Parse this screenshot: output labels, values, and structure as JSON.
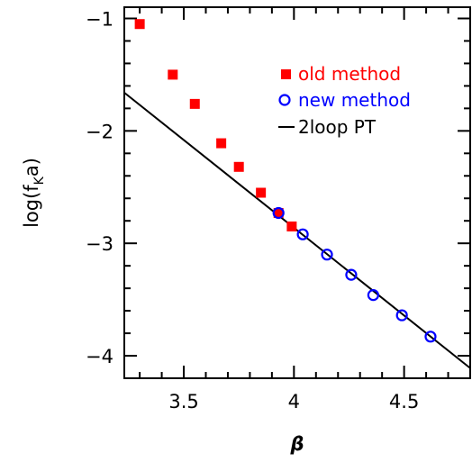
{
  "chart_data": {
    "type": "scatter",
    "xlabel": "β",
    "ylabel_main": "log(f",
    "ylabel_sub": "K",
    "ylabel_tail": "a)",
    "xlim": [
      3.23,
      4.8
    ],
    "ylim": [
      -4.2,
      -0.9
    ],
    "x_ticks": [
      3.5,
      4,
      4.5
    ],
    "x_tick_labels": [
      "3.5",
      "4",
      "4.5"
    ],
    "y_ticks": [
      -1,
      -2,
      -3,
      -4
    ],
    "y_tick_labels": [
      "−1",
      "−2",
      "−3",
      "−4"
    ],
    "x_minor_step": 0.1,
    "y_minor_step": 0.2,
    "legend_position": "top-right",
    "series": [
      {
        "name": "old method",
        "marker": "filled-square",
        "color": "#ff0000",
        "points": [
          {
            "x": 3.3,
            "y": -1.05
          },
          {
            "x": 3.45,
            "y": -1.5
          },
          {
            "x": 3.55,
            "y": -1.76
          },
          {
            "x": 3.67,
            "y": -2.11
          },
          {
            "x": 3.75,
            "y": -2.32
          },
          {
            "x": 3.85,
            "y": -2.55
          },
          {
            "x": 3.93,
            "y": -2.73
          },
          {
            "x": 3.99,
            "y": -2.85
          }
        ]
      },
      {
        "name": "new method",
        "marker": "open-circle",
        "color": "#0000ff",
        "points": [
          {
            "x": 3.93,
            "y": -2.73
          },
          {
            "x": 4.04,
            "y": -2.92
          },
          {
            "x": 4.15,
            "y": -3.1
          },
          {
            "x": 4.26,
            "y": -3.28
          },
          {
            "x": 4.36,
            "y": -3.46
          },
          {
            "x": 4.49,
            "y": -3.64
          },
          {
            "x": 4.62,
            "y": -3.83
          }
        ]
      },
      {
        "name": "2loop PT",
        "marker": "line",
        "color": "#000000",
        "line": [
          {
            "x": 3.23,
            "y": -1.66
          },
          {
            "x": 4.8,
            "y": -4.11
          }
        ]
      }
    ]
  }
}
